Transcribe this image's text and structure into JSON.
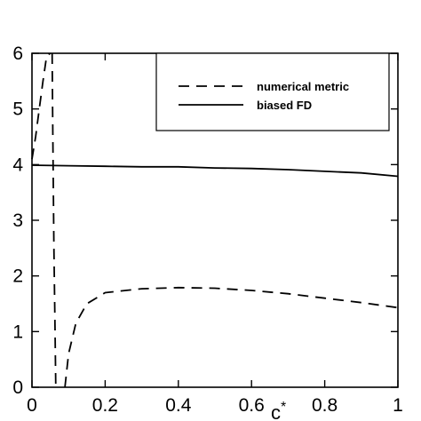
{
  "chart_data": {
    "type": "line",
    "xlabel": "c*",
    "ylabel": "",
    "xlim": [
      0,
      1
    ],
    "ylim": [
      0,
      6
    ],
    "x_ticks": [
      "0",
      "0.2",
      "0.4",
      "0.6",
      "0.8",
      "1"
    ],
    "y_ticks": [
      "0",
      "1",
      "2",
      "3",
      "4",
      "5",
      "6"
    ],
    "grid": false,
    "legend_position": "top-right",
    "series": [
      {
        "name": "numerical metric",
        "style": "dashed",
        "color": "#000000",
        "segments": [
          {
            "x": [
              0.0,
              0.01,
              0.02,
              0.03,
              0.04,
              0.05
            ],
            "y": [
              4.1,
              4.5,
              5.0,
              5.5,
              5.95,
              6.0
            ]
          },
          {
            "x": [
              0.055,
              0.057,
              0.06,
              0.063,
              0.065
            ],
            "y": [
              6.0,
              4.5,
              2.5,
              1.0,
              0.0
            ]
          },
          {
            "x": [
              0.09,
              0.1,
              0.12,
              0.15,
              0.2,
              0.3,
              0.4,
              0.5,
              0.6,
              0.7,
              0.8,
              0.9,
              1.0
            ],
            "y": [
              0.0,
              0.6,
              1.15,
              1.5,
              1.7,
              1.77,
              1.79,
              1.78,
              1.74,
              1.68,
              1.6,
              1.52,
              1.43
            ]
          }
        ]
      },
      {
        "name": "biased FD",
        "style": "solid",
        "color": "#000000",
        "segments": [
          {
            "x": [
              0.0,
              0.1,
              0.2,
              0.3,
              0.4,
              0.5,
              0.6,
              0.7,
              0.8,
              0.9,
              1.0
            ],
            "y": [
              3.99,
              3.98,
              3.97,
              3.96,
              3.96,
              3.94,
              3.93,
              3.91,
              3.88,
              3.85,
              3.79
            ]
          }
        ]
      }
    ]
  }
}
